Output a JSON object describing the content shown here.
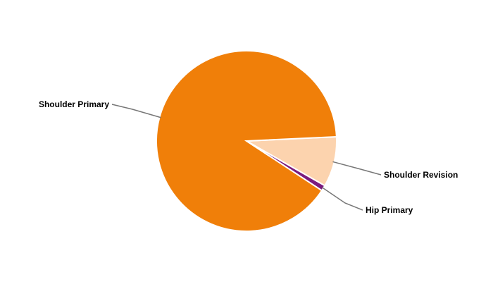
{
  "chart_data": {
    "type": "pie",
    "categories": [
      "Shoulder Revision",
      "Hip Primary",
      "Shoulder Primary"
    ],
    "values": [
      9,
      1,
      90
    ],
    "colors": [
      "#fcd3ae",
      "#7b1b7e",
      "#f07f09"
    ],
    "legend": "none",
    "data_labels": "outside with connectors"
  }
}
